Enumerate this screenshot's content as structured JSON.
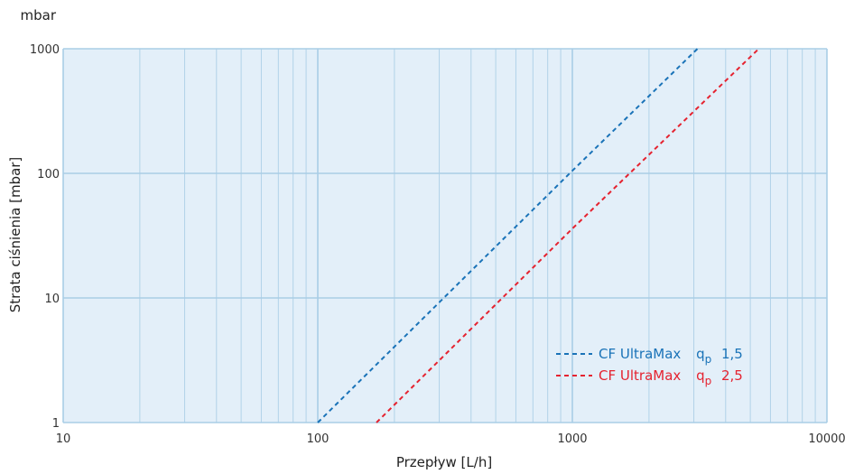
{
  "chart_data": {
    "type": "line",
    "x_scale": "log",
    "y_scale": "log",
    "xlabel": "Przepływ [L/h]",
    "ylabel": "Strata ciśnienia [mbar]",
    "yunit": "mbar",
    "xlim": [
      10,
      10000
    ],
    "ylim": [
      1,
      1000
    ],
    "x_ticks": [
      10,
      100,
      1000,
      10000
    ],
    "y_ticks": [
      1,
      10,
      100,
      1000
    ],
    "x_tick_labels": [
      "10",
      "100",
      "1000",
      "10000"
    ],
    "y_tick_labels": [
      "1",
      "10",
      "100",
      "1000"
    ],
    "grid": true,
    "legend_position": "bottom-right",
    "plot_background": "#e3eff9",
    "grid_color": "#a9cde6",
    "series": [
      {
        "name": "CF UltraMax",
        "subscript_label": "q",
        "subscript": "p",
        "value_label": "1,5",
        "color": "#1a73b8",
        "line_style": "dashed",
        "x": [
          100,
          1000,
          3100
        ],
        "y": [
          1,
          105,
          1000
        ]
      },
      {
        "name": "CF UltraMax",
        "subscript_label": "q",
        "subscript": "p",
        "value_label": "2,5",
        "color": "#e52330",
        "line_style": "dashed",
        "x": [
          170,
          1000,
          5400
        ],
        "y": [
          1,
          36,
          1000
        ]
      }
    ]
  }
}
